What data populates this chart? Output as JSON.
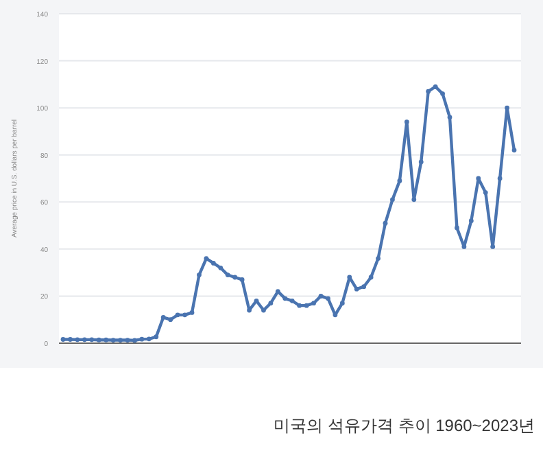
{
  "chart_data": {
    "type": "line",
    "title": "미국의 석유가격 추이 1960~2023년",
    "ylabel": "Average price in U.S. dollars per barrel",
    "categories": [
      null,
      null,
      null,
      null,
      null,
      null,
      null,
      null,
      null,
      null,
      null,
      null,
      null,
      null,
      null,
      null,
      null,
      null,
      null,
      null,
      null,
      null,
      null,
      null,
      null,
      null,
      null,
      null,
      null,
      null,
      null,
      null,
      null,
      null,
      null,
      null,
      null,
      null,
      null,
      null,
      null,
      null,
      null,
      null,
      null,
      null,
      null,
      null,
      null,
      null,
      null,
      null,
      null,
      null,
      null,
      null,
      null,
      null,
      null,
      null,
      null,
      null,
      null,
      null
    ],
    "series": [
      {
        "color": "#4a74b0",
        "values": [
          1.6,
          1.6,
          1.5,
          1.5,
          1.5,
          1.4,
          1.4,
          1.3,
          1.3,
          1.3,
          1.2,
          1.7,
          1.8,
          2.7,
          11,
          10,
          12,
          12,
          13,
          29,
          36,
          34,
          32,
          29,
          28,
          27,
          14,
          18,
          14,
          17,
          22,
          19,
          18,
          16,
          16,
          17,
          20,
          19,
          12,
          17,
          28,
          23,
          24,
          28,
          36,
          51,
          61,
          69,
          94,
          61,
          77,
          107,
          109,
          106,
          96,
          49,
          41,
          52,
          70,
          64,
          41,
          70,
          100,
          82
        ]
      }
    ],
    "ylim": [
      0,
      140
    ],
    "yticks": [
      0,
      20,
      40,
      60,
      80,
      100,
      120,
      140
    ],
    "grid": "y",
    "marker": "circle",
    "line_style": "solid",
    "tick_labels": "y"
  }
}
